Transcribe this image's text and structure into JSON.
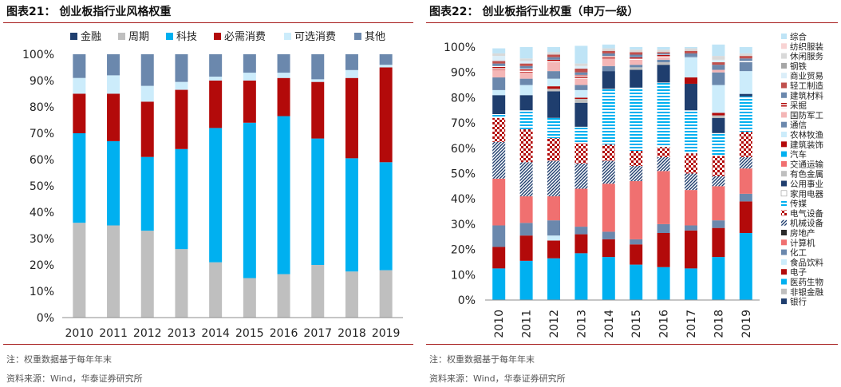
{
  "left": {
    "title": "图表21： 创业板指行业风格权重",
    "note": "注：权重数据基于每年年末",
    "source": "资料来源：Wind，华泰证券研究所"
  },
  "right": {
    "title": "图表22： 创业板指行业权重（申万一级）",
    "note": "注：权重数据基于每年年末",
    "source": "资料来源：Wind，华泰证券研究所"
  },
  "chart_data": [
    {
      "type": "bar",
      "stacked": true,
      "title": "创业板指行业风格权重",
      "categories": [
        "2010",
        "2011",
        "2012",
        "2013",
        "2014",
        "2015",
        "2016",
        "2017",
        "2018",
        "2019"
      ],
      "ylim": [
        0,
        100
      ],
      "yticks": [
        "0%",
        "10%",
        "20%",
        "30%",
        "40%",
        "50%",
        "60%",
        "70%",
        "80%",
        "90%",
        "100%"
      ],
      "legend_position": "top",
      "grid": false,
      "series": [
        {
          "name": "金融",
          "color": "#1f3e6e",
          "values": [
            0,
            0,
            0,
            0,
            0,
            0,
            0,
            0,
            0,
            0
          ]
        },
        {
          "name": "周期",
          "color": "#bfbfbf",
          "values": [
            36,
            35,
            33,
            26,
            21,
            15,
            16.5,
            20,
            17.5,
            18
          ]
        },
        {
          "name": "科技",
          "color": "#00b0f0",
          "values": [
            34,
            32,
            28,
            38,
            51,
            59,
            60,
            48,
            43,
            41
          ]
        },
        {
          "name": "必需消费",
          "color": "#b30a0a",
          "values": [
            15,
            18,
            21,
            22.5,
            18,
            16,
            14.5,
            21.5,
            30.5,
            36
          ]
        },
        {
          "name": "可选消费",
          "color": "#ccecfb",
          "values": [
            6,
            7,
            6,
            3,
            1.5,
            3,
            2,
            1,
            3,
            1
          ]
        },
        {
          "name": "其他",
          "color": "#6b88ad",
          "values": [
            9,
            8,
            12,
            10.5,
            8.5,
            7,
            7,
            9.5,
            6,
            4
          ]
        }
      ]
    },
    {
      "type": "bar",
      "stacked": true,
      "title": "创业板指行业权重（申万一级）",
      "categories": [
        "2010",
        "2011",
        "2012",
        "2013",
        "2014",
        "2015",
        "2016",
        "2017",
        "2018",
        "2019"
      ],
      "ylim": [
        0,
        100
      ],
      "yticks": [
        "0%",
        "10%",
        "20%",
        "30%",
        "40%",
        "50%",
        "60%",
        "70%",
        "80%",
        "90%",
        "100%"
      ],
      "legend_position": "right",
      "grid": false,
      "series": [
        {
          "name": "银行",
          "color": "#1f3e6e",
          "pattern": "solid",
          "values": [
            0,
            0,
            0,
            0,
            0,
            0,
            0,
            0,
            0,
            0
          ]
        },
        {
          "name": "非银金融",
          "color": "#bfbfbf",
          "pattern": "solid",
          "values": [
            0,
            0,
            0,
            0,
            0,
            0,
            0,
            0,
            0,
            0
          ]
        },
        {
          "name": "医药生物",
          "color": "#00b0f0",
          "pattern": "solid",
          "values": [
            12.5,
            15.5,
            16.5,
            18.5,
            17,
            14,
            13,
            12.5,
            17,
            26.5
          ]
        },
        {
          "name": "电子",
          "color": "#b30a0a",
          "pattern": "solid",
          "values": [
            8.5,
            10,
            7,
            7.5,
            7,
            8,
            13.5,
            15,
            11.5,
            12.5
          ]
        },
        {
          "name": "食品饮料",
          "color": "#ccecfb",
          "pattern": "solid",
          "values": [
            0,
            0,
            2,
            0,
            0,
            0,
            0,
            0,
            0,
            0
          ]
        },
        {
          "name": "化工",
          "color": "#6b88ad",
          "pattern": "solid",
          "values": [
            8.5,
            5,
            6,
            3,
            3,
            2,
            3.5,
            2,
            3,
            3
          ]
        },
        {
          "name": "计算机",
          "color": "#f07070",
          "pattern": "solid",
          "values": [
            18.5,
            10.5,
            9.5,
            15,
            19,
            23,
            21,
            14,
            13.5,
            10
          ]
        },
        {
          "name": "房地产",
          "color": "#2a2a2a",
          "pattern": "solid",
          "values": [
            0,
            0,
            0,
            0,
            0,
            0,
            0,
            0,
            0,
            0
          ]
        },
        {
          "name": "机械设备",
          "color": "#1f3e6e",
          "pattern": "diag",
          "values": [
            14.5,
            13.5,
            14,
            10,
            9,
            6,
            5.5,
            6.5,
            4,
            4.5
          ]
        },
        {
          "name": "电气设备",
          "color": "#b30a0a",
          "pattern": "check",
          "values": [
            9.5,
            13,
            9,
            8,
            6.5,
            6,
            4,
            8,
            8,
            10
          ]
        },
        {
          "name": "传媒",
          "color": "#00b0f0",
          "pattern": "hstripe",
          "values": [
            1.5,
            7.5,
            8,
            6.5,
            22,
            25,
            25.5,
            17,
            9,
            14
          ]
        },
        {
          "name": "家用电器",
          "color": "#ffffff",
          "pattern": "solid",
          "values": [
            0,
            0,
            0,
            0,
            0,
            0,
            0,
            0,
            0,
            0
          ]
        },
        {
          "name": "公用事业",
          "color": "#1f3e6e",
          "pattern": "solid",
          "values": [
            7.5,
            6,
            10.5,
            9.5,
            7,
            7,
            7,
            10.5,
            6,
            1
          ]
        },
        {
          "name": "有色金属",
          "color": "#bfbfbf",
          "pattern": "solid",
          "values": [
            0,
            0,
            1,
            1.5,
            0,
            1,
            1,
            0,
            1,
            0
          ]
        },
        {
          "name": "交通运输",
          "color": "#f07070",
          "pattern": "solid",
          "values": [
            0,
            0,
            0,
            0,
            0,
            0,
            0,
            0,
            0,
            0
          ]
        },
        {
          "name": "汽车",
          "color": "#00b0f0",
          "pattern": "solid",
          "values": [
            0,
            0,
            0,
            0,
            0,
            0,
            0,
            0,
            0,
            0
          ]
        },
        {
          "name": "建筑装饰",
          "color": "#b30a0a",
          "pattern": "solid",
          "values": [
            0,
            0,
            1,
            0.5,
            0,
            0,
            0,
            2.5,
            1,
            0
          ]
        },
        {
          "name": "农林牧渔",
          "color": "#ccecfb",
          "pattern": "solid",
          "values": [
            2,
            4,
            3,
            3,
            0,
            0,
            0,
            8,
            11,
            9
          ]
        },
        {
          "name": "通信",
          "color": "#6b88ad",
          "pattern": "solid",
          "values": [
            5,
            2.5,
            3,
            2,
            2,
            1,
            1,
            0.5,
            5,
            3.5
          ]
        },
        {
          "name": "国防军工",
          "color": "#f4b6b6",
          "pattern": "solid",
          "values": [
            3,
            2.5,
            3.5,
            2.5,
            3,
            2,
            1,
            0,
            1,
            0
          ]
        },
        {
          "name": "采掘",
          "color": "#b30a0a",
          "pattern": "hstripe",
          "values": [
            1.5,
            1.5,
            1,
            1.5,
            1,
            1,
            1,
            0,
            0,
            0.5
          ]
        },
        {
          "name": "建筑材料",
          "color": "#6b88ad",
          "pattern": "solid",
          "values": [
            1,
            1,
            1,
            1,
            1,
            1,
            0.5,
            1,
            2,
            1
          ]
        },
        {
          "name": "轻工制造",
          "color": "#c0504d",
          "pattern": "solid",
          "values": [
            1,
            1,
            1,
            1.5,
            1,
            1,
            0.5,
            1,
            1,
            1
          ]
        },
        {
          "name": "商业贸易",
          "color": "#dbeef9",
          "pattern": "solid",
          "values": [
            2,
            1,
            0,
            1,
            0,
            0,
            0,
            0,
            1,
            0
          ]
        },
        {
          "name": "钢铁",
          "color": "#a6a6a6",
          "pattern": "solid",
          "values": [
            0,
            0,
            0,
            0,
            0,
            0,
            0,
            0,
            0,
            0
          ]
        },
        {
          "name": "休闲服务",
          "color": "#d9d9d9",
          "pattern": "solid",
          "values": [
            1,
            1,
            1,
            1,
            1,
            1,
            1,
            1,
            1.5,
            1
          ]
        },
        {
          "name": "纺织服装",
          "color": "#f8d3d3",
          "pattern": "solid",
          "values": [
            0,
            0,
            0,
            0,
            0,
            0,
            0,
            0,
            0,
            0
          ]
        },
        {
          "name": "综合",
          "color": "#bfe4f6",
          "pattern": "solid",
          "values": [
            2,
            4.5,
            2,
            7,
            1.5,
            1,
            1,
            0.5,
            4.5,
            2.5
          ]
        }
      ]
    }
  ]
}
